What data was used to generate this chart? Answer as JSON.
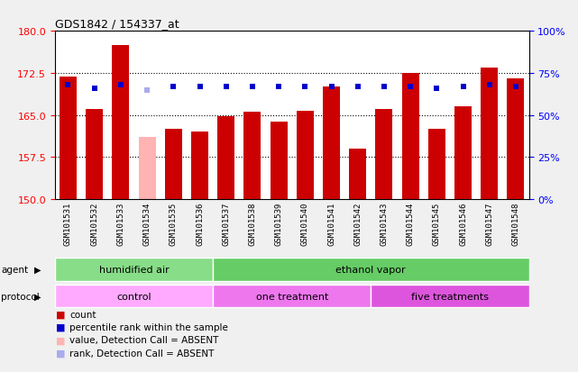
{
  "title": "GDS1842 / 154337_at",
  "samples": [
    "GSM101531",
    "GSM101532",
    "GSM101533",
    "GSM101534",
    "GSM101535",
    "GSM101536",
    "GSM101537",
    "GSM101538",
    "GSM101539",
    "GSM101540",
    "GSM101541",
    "GSM101542",
    "GSM101543",
    "GSM101544",
    "GSM101545",
    "GSM101546",
    "GSM101547",
    "GSM101548"
  ],
  "count_values": [
    171.8,
    166.0,
    177.5,
    161.0,
    162.5,
    162.0,
    164.8,
    165.5,
    163.8,
    165.8,
    170.0,
    159.0,
    166.0,
    172.5,
    162.5,
    166.5,
    173.5,
    171.5
  ],
  "rank_values": [
    68,
    66,
    68,
    65,
    67,
    67,
    67,
    67,
    67,
    67,
    67,
    67,
    67,
    67,
    66,
    67,
    68,
    67
  ],
  "absent_mask": [
    false,
    false,
    false,
    true,
    false,
    false,
    false,
    false,
    false,
    false,
    false,
    false,
    false,
    false,
    false,
    false,
    false,
    false
  ],
  "absent_rank_mask": [
    false,
    false,
    false,
    true,
    false,
    false,
    false,
    false,
    false,
    false,
    false,
    false,
    false,
    false,
    false,
    false,
    false,
    false
  ],
  "ylim_left": [
    150,
    180
  ],
  "ylim_right": [
    0,
    100
  ],
  "yticks_left": [
    150,
    157.5,
    165,
    172.5,
    180
  ],
  "yticks_right": [
    0,
    25,
    50,
    75,
    100
  ],
  "bar_color_normal": "#cc0000",
  "bar_color_absent": "#ffb3b3",
  "rank_color_normal": "#0000cc",
  "rank_color_absent": "#aaaaee",
  "agent_groups": [
    {
      "label": "humidified air",
      "start": 0,
      "end": 6,
      "color": "#88dd88"
    },
    {
      "label": "ethanol vapor",
      "start": 6,
      "end": 18,
      "color": "#66cc66"
    }
  ],
  "protocol_groups": [
    {
      "label": "control",
      "start": 0,
      "end": 6,
      "color": "#ffaaff"
    },
    {
      "label": "one treatment",
      "start": 6,
      "end": 12,
      "color": "#ee77ee"
    },
    {
      "label": "five treatments",
      "start": 12,
      "end": 18,
      "color": "#dd55dd"
    }
  ],
  "legend_items": [
    {
      "label": "count",
      "color": "#cc0000"
    },
    {
      "label": "percentile rank within the sample",
      "color": "#0000cc"
    },
    {
      "label": "value, Detection Call = ABSENT",
      "color": "#ffb3b3"
    },
    {
      "label": "rank, Detection Call = ABSENT",
      "color": "#aaaaee"
    }
  ],
  "bar_width": 0.65,
  "rank_marker_size": 5,
  "plot_bg_color": "#ffffff",
  "fig_bg_color": "#f0f0f0",
  "dotted_grid_values": [
    157.5,
    165.0,
    172.5
  ]
}
